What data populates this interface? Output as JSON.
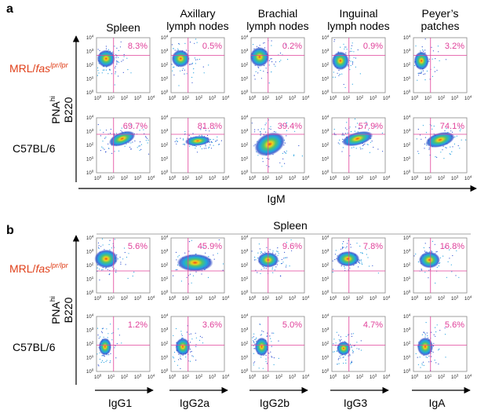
{
  "panel_a": {
    "label": "a",
    "columns": [
      [
        "Spleen"
      ],
      [
        "Axillary",
        "lymph nodes"
      ],
      [
        "Brachial",
        "lymph nodes"
      ],
      [
        "Inguinal",
        "lymph nodes"
      ],
      [
        "Peyer’s",
        "patches"
      ]
    ],
    "rows": [
      {
        "label": {
          "main": "MRL/",
          "italic": "fas",
          "sup": "lpr/lpr"
        },
        "percentages": [
          "8.3%",
          "0.5%",
          "0.2%",
          "0.9%",
          "3.2%"
        ]
      },
      {
        "label": {
          "main": "C57BL/6"
        },
        "percentages": [
          "69.7%",
          "81.8%",
          "39.4%",
          "57.9%",
          "74.1%"
        ]
      }
    ],
    "y_axis_label": {
      "line1": "PNA",
      "line1_sup": "hi",
      "line2": "B220"
    },
    "x_axis_label": "IgM"
  },
  "panel_b": {
    "label": "b",
    "group_title": "Spleen",
    "rows": [
      {
        "label": {
          "main": "MRL/",
          "italic": "fas",
          "sup": "lpr/lpr"
        },
        "percentages": [
          "5.6%",
          "45.9%",
          "9.6%",
          "7.8%",
          "16.8%"
        ]
      },
      {
        "label": {
          "main": "C57BL/6"
        },
        "percentages": [
          "1.2%",
          "3.6%",
          "5.0%",
          "4.7%",
          "5.6%"
        ]
      }
    ],
    "y_axis_label": {
      "line1": "PNA",
      "line1_sup": "hi",
      "line2": "B220"
    },
    "x_axis_labels": [
      "IgG1",
      "IgG2a",
      "IgG2b",
      "IgG3",
      "IgA"
    ]
  },
  "axis_ticks": {
    "base": "10",
    "exponents": [
      "0",
      "1",
      "2",
      "3",
      "4"
    ]
  }
}
